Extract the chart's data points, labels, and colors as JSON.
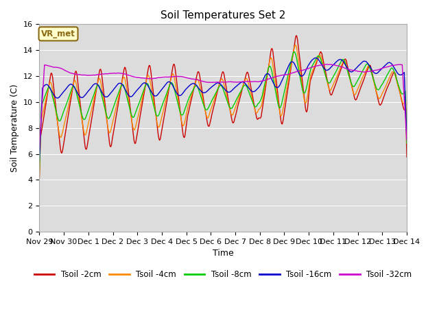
{
  "title": "Soil Temperatures Set 2",
  "xlabel": "Time",
  "ylabel": "Soil Temperature (C)",
  "ylim": [
    0,
    16
  ],
  "yticks": [
    0,
    2,
    4,
    6,
    8,
    10,
    12,
    14,
    16
  ],
  "bg_color": "#dcdcdc",
  "fig_color": "#ffffff",
  "annotation_text": "VR_met",
  "annotation_box_color": "#ffffcc",
  "annotation_box_edge": "#8B6914",
  "series_colors": {
    "Tsoil -2cm": "#cc0000",
    "Tsoil -4cm": "#ff8800",
    "Tsoil -8cm": "#00cc00",
    "Tsoil -16cm": "#0000cc",
    "Tsoil -32cm": "#cc00cc"
  },
  "x_tick_labels": [
    "Nov 29",
    "Nov 30",
    "Dec 1",
    "Dec 2",
    "Dec 3",
    "Dec 4",
    "Dec 5",
    "Dec 6",
    "Dec 7",
    "Dec 8",
    "Dec 9",
    "Dec 10",
    "Dec 11",
    "Dec 12",
    "Dec 13",
    "Dec 14"
  ],
  "n_points": 720
}
